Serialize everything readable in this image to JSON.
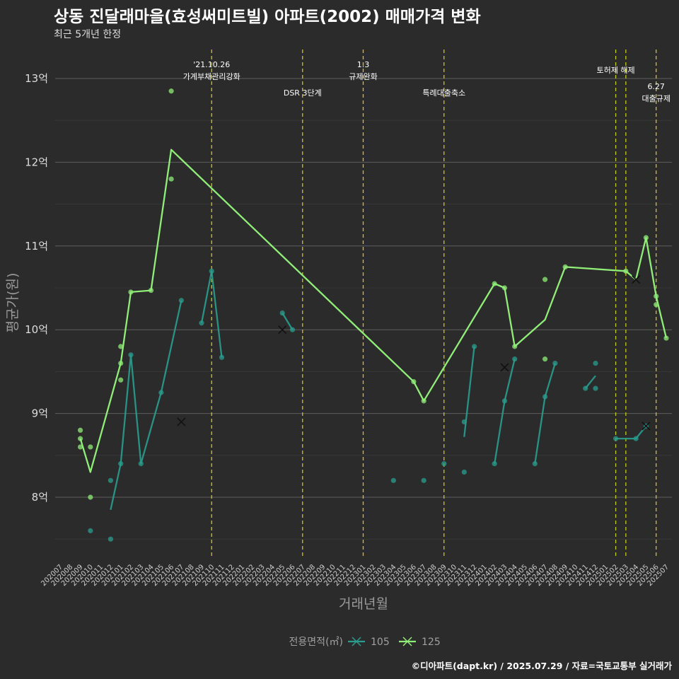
{
  "chart_data": {
    "type": "line",
    "title": "상동 진달래마을(효성써미트빌) 아파트(2002) 매매가격 변화",
    "subtitle": "최근 5개년 한정",
    "caption": "©디아파트(dapt.kr) / 2025.07.29 / 자료=국토교통부 실거래가",
    "xlabel": "거래년월",
    "ylabel": "평균가(원)",
    "legend_title": "전용면적(㎡)",
    "legend_position": "bottom",
    "categories": [
      "202007",
      "202008",
      "202009",
      "202010",
      "202011",
      "202012",
      "202101",
      "202102",
      "202103",
      "202104",
      "202105",
      "202106",
      "202107",
      "202108",
      "202109",
      "202110",
      "202111",
      "202112",
      "202201",
      "202202",
      "202203",
      "202204",
      "202205",
      "202206",
      "202207",
      "202208",
      "202209",
      "202210",
      "202211",
      "202212",
      "202301",
      "202302",
      "202303",
      "202304",
      "202305",
      "202306",
      "202307",
      "202308",
      "202309",
      "202310",
      "202311",
      "202312",
      "202401",
      "202402",
      "202403",
      "202404",
      "202405",
      "202406",
      "202407",
      "202408",
      "202409",
      "202410",
      "202411",
      "202412",
      "202501",
      "202502",
      "202503",
      "202504",
      "202505",
      "202506",
      "202507"
    ],
    "y_ticks": [
      {
        "value": 8.0,
        "label": "8억"
      },
      {
        "value": 9.0,
        "label": "9억"
      },
      {
        "value": 10.0,
        "label": "10억"
      },
      {
        "value": 11.0,
        "label": "11억"
      },
      {
        "value": 12.0,
        "label": "12억"
      },
      {
        "value": 13.0,
        "label": "13억"
      }
    ],
    "ylim": [
      7.2,
      13.35
    ],
    "grid": true,
    "events": [
      {
        "month": "202110",
        "label": "'21.10.26\n가계부채관리강화",
        "row": "upper"
      },
      {
        "month": "202207",
        "label": "DSR 3단계",
        "row": "lower"
      },
      {
        "month": "202301",
        "label": "1.3\n규제완화",
        "row": "upper"
      },
      {
        "month": "202309",
        "label": "특례대출축소",
        "row": "lower"
      },
      {
        "month": "202502",
        "label": "토허제 해제",
        "row": "upper"
      },
      {
        "month": "202503",
        "label": "",
        "row": "upper"
      },
      {
        "month": "202506",
        "label": "6.27\n대출규제",
        "row": "right"
      }
    ],
    "series": [
      {
        "name": "105",
        "color": "#2a9d8f",
        "line": [
          [
            [
              "202012",
              7.85
            ],
            [
              "202101",
              8.4
            ],
            [
              "202102",
              9.7
            ],
            [
              "202103",
              8.4
            ],
            [
              "202105",
              9.25
            ],
            [
              "202107",
              10.35
            ]
          ],
          [
            [
              "202109",
              10.08
            ],
            [
              "202110",
              10.7
            ],
            [
              "202111",
              9.67
            ]
          ],
          [
            [
              "202205",
              10.2
            ],
            [
              "202206",
              10.0
            ]
          ],
          [
            [
              "202311",
              8.72
            ],
            [
              "202312",
              9.8
            ]
          ],
          [
            [
              "202402",
              8.4
            ],
            [
              "202403",
              9.15
            ],
            [
              "202404",
              9.65
            ]
          ],
          [
            [
              "202406",
              8.4
            ],
            [
              "202407",
              9.2
            ],
            [
              "202408",
              9.6
            ]
          ],
          [
            [
              "202411",
              9.3
            ],
            [
              "202412",
              9.45
            ]
          ],
          [
            [
              "202502",
              8.7
            ],
            [
              "202504",
              8.7
            ],
            [
              "202505",
              8.85
            ]
          ]
        ],
        "points": [
          [
            "202010",
            7.6
          ],
          [
            "202012",
            8.2
          ],
          [
            "202012",
            7.5
          ],
          [
            "202101",
            8.4
          ],
          [
            "202102",
            9.7
          ],
          [
            "202103",
            8.4
          ],
          [
            "202105",
            9.25
          ],
          [
            "202107",
            10.35
          ],
          [
            "202109",
            10.08
          ],
          [
            "202110",
            10.7
          ],
          [
            "202111",
            9.67
          ],
          [
            "202205",
            10.2
          ],
          [
            "202206",
            10.0
          ],
          [
            "202304",
            8.2
          ],
          [
            "202307",
            8.2
          ],
          [
            "202309",
            8.4
          ],
          [
            "202311",
            8.3
          ],
          [
            "202311",
            8.9
          ],
          [
            "202312",
            9.8
          ],
          [
            "202402",
            8.4
          ],
          [
            "202403",
            9.15
          ],
          [
            "202404",
            9.65
          ],
          [
            "202406",
            8.4
          ],
          [
            "202407",
            9.2
          ],
          [
            "202408",
            9.6
          ],
          [
            "202411",
            9.3
          ],
          [
            "202412",
            9.6
          ],
          [
            "202412",
            9.3
          ],
          [
            "202502",
            8.7
          ],
          [
            "202504",
            8.7
          ],
          [
            "202505",
            8.85
          ]
        ],
        "cancelled": [
          [
            "202107",
            8.9
          ],
          [
            "202205",
            10.0
          ],
          [
            "202403",
            9.55
          ],
          [
            "202505",
            8.85
          ]
        ]
      },
      {
        "name": "125",
        "color": "#90ee78",
        "line": [
          [
            [
              "202009",
              8.7
            ],
            [
              "202010",
              8.3
            ],
            [
              "202101",
              9.6
            ],
            [
              "202102",
              10.45
            ],
            [
              "202104",
              10.47
            ],
            [
              "202106",
              12.15
            ],
            [
              "202306",
              9.38
            ],
            [
              "202307",
              9.15
            ],
            [
              "202402",
              10.55
            ],
            [
              "202403",
              10.5
            ],
            [
              "202404",
              9.8
            ],
            [
              "202407",
              10.12
            ],
            [
              "202409",
              10.75
            ],
            [
              "202503",
              10.7
            ],
            [
              "202504",
              10.6
            ],
            [
              "202505",
              11.1
            ],
            [
              "202506",
              10.4
            ],
            [
              "202507",
              9.9
            ]
          ]
        ],
        "points": [
          [
            "202009",
            8.8
          ],
          [
            "202009",
            8.7
          ],
          [
            "202009",
            8.6
          ],
          [
            "202010",
            8.6
          ],
          [
            "202010",
            8.0
          ],
          [
            "202101",
            9.8
          ],
          [
            "202101",
            9.6
          ],
          [
            "202101",
            9.4
          ],
          [
            "202102",
            10.45
          ],
          [
            "202104",
            10.47
          ],
          [
            "202106",
            12.85
          ],
          [
            "202106",
            11.8
          ],
          [
            "202306",
            9.38
          ],
          [
            "202307",
            9.15
          ],
          [
            "202402",
            10.55
          ],
          [
            "202403",
            10.5
          ],
          [
            "202404",
            9.8
          ],
          [
            "202407",
            10.6
          ],
          [
            "202407",
            9.65
          ],
          [
            "202409",
            10.75
          ],
          [
            "202503",
            10.7
          ],
          [
            "202505",
            11.1
          ],
          [
            "202506",
            10.4
          ],
          [
            "202506",
            10.3
          ],
          [
            "202507",
            9.9
          ]
        ],
        "cancelled": [
          [
            "202504",
            10.6
          ]
        ]
      }
    ]
  }
}
